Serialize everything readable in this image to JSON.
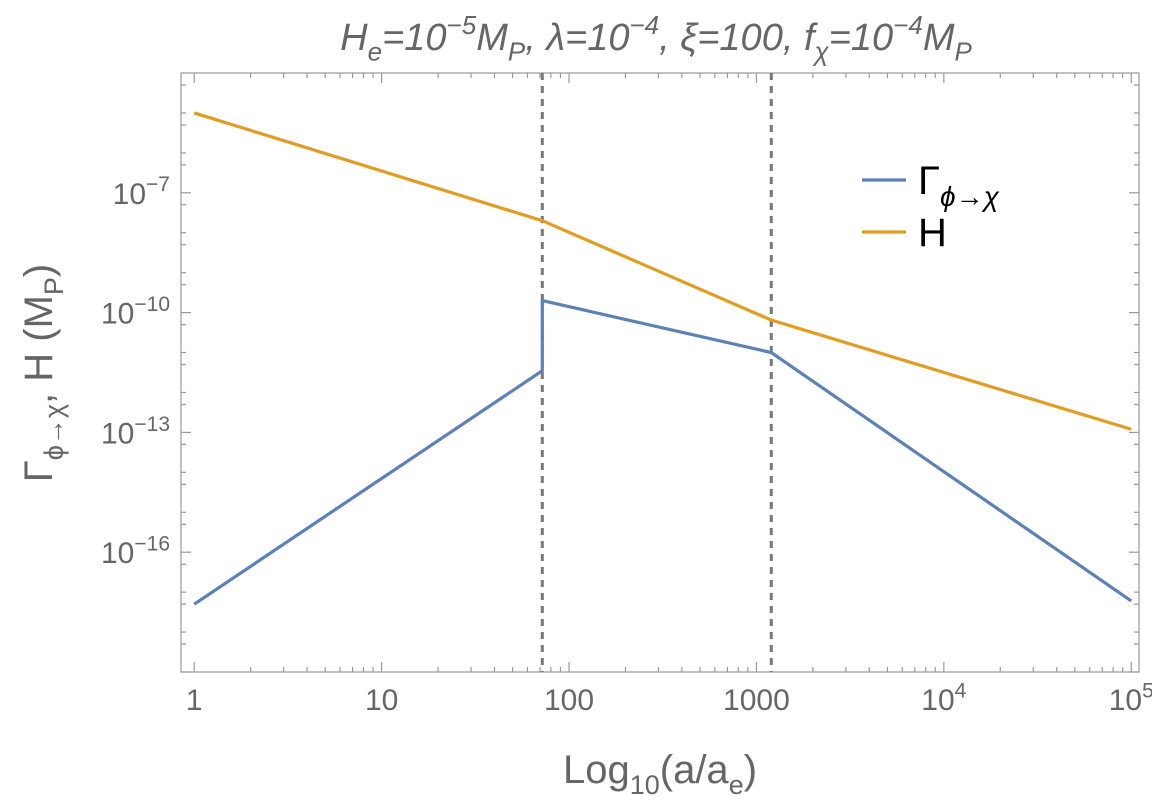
{
  "chart_data": {
    "type": "line",
    "title_parts": [
      {
        "t": "H"
      },
      {
        "t": "e",
        "sub": true
      },
      {
        "t": "=10"
      },
      {
        "t": "−5",
        "sup": true
      },
      {
        "t": "M"
      },
      {
        "t": "P",
        "sub": true
      },
      {
        "t": ", λ=10"
      },
      {
        "t": "−4",
        "sup": true
      },
      {
        "t": ", ξ=100, f"
      },
      {
        "t": "χ",
        "sub": true
      },
      {
        "t": "=10"
      },
      {
        "t": "−4",
        "sup": true
      },
      {
        "t": "M"
      },
      {
        "t": "P",
        "sub": true
      }
    ],
    "xlabel_parts": [
      {
        "t": "Log"
      },
      {
        "t": "10",
        "sub": true
      },
      {
        "t": "(a/a"
      },
      {
        "t": "e",
        "sub": true
      },
      {
        "t": ")"
      }
    ],
    "ylabel_parts": [
      {
        "t": "Γ"
      },
      {
        "t": "ϕ→χ",
        "sub": true
      },
      {
        "t": ", H (M"
      },
      {
        "t": "P",
        "sub": true
      },
      {
        "t": ")"
      }
    ],
    "x_scale": "log",
    "y_scale": "log",
    "xlim": [
      0.85,
      110000
    ],
    "ylim": [
      1e-19,
      0.0001
    ],
    "x_ticks": [
      {
        "value": 1,
        "label": "1"
      },
      {
        "value": 10,
        "label": "10"
      },
      {
        "value": 100,
        "label": "100"
      },
      {
        "value": 1000,
        "label": "1000"
      },
      {
        "value": 10000,
        "base": "10",
        "exp": "4"
      },
      {
        "value": 100000,
        "base": "10",
        "exp": "5"
      }
    ],
    "y_ticks": [
      {
        "value": 1e-07,
        "base": "10",
        "exp": "−7"
      },
      {
        "value": 1e-10,
        "base": "10",
        "exp": "−10"
      },
      {
        "value": 1e-13,
        "base": "10",
        "exp": "−13"
      },
      {
        "value": 1e-16,
        "base": "10",
        "exp": "−16"
      }
    ],
    "vlines": [
      72,
      1200
    ],
    "series": [
      {
        "name_parts": [
          {
            "t": "Γ"
          },
          {
            "t": "ϕ→χ",
            "sub": true
          }
        ],
        "color": "#5e81b5",
        "points": [
          [
            1,
            5e-18
          ],
          [
            72,
            3.5e-12
          ],
          [
            72,
            2e-10
          ],
          [
            1200,
            1e-11
          ],
          [
            100000,
            6e-18
          ]
        ]
      },
      {
        "name_parts": [
          {
            "t": "H"
          }
        ],
        "color": "#e19c24",
        "points": [
          [
            1,
            1e-05
          ],
          [
            72,
            2e-08
          ],
          [
            1200,
            6.5e-11
          ],
          [
            100000,
            1.2e-13
          ]
        ]
      }
    ],
    "legend_position": "top-right",
    "grid": false
  }
}
